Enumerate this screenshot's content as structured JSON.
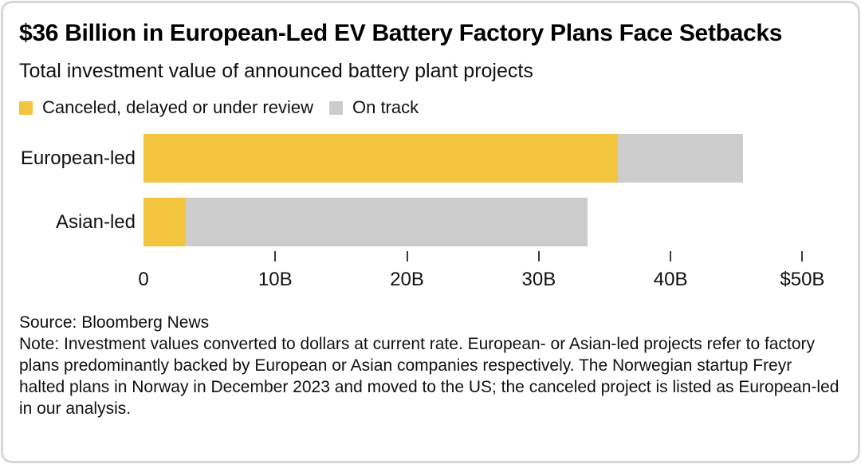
{
  "header": {
    "title": "$36 Billion in European-Led EV Battery Factory Plans Face Setbacks",
    "subtitle": "Total investment value of announced battery plant projects"
  },
  "colors": {
    "canceled": "#F3C53F",
    "on_track": "#CCCCCC"
  },
  "chart_data": {
    "type": "bar",
    "orientation": "horizontal",
    "stacked": true,
    "title": "$36 Billion in European-Led EV Battery Factory Plans Face Setbacks",
    "subtitle": "Total investment value of announced battery plant projects",
    "categories": [
      "European-led",
      "Asian-led"
    ],
    "series": [
      {
        "name": "Canceled, delayed or under review",
        "color": "#F3C53F",
        "values": [
          36,
          3.2
        ]
      },
      {
        "name": "On track",
        "color": "#CCCCCC",
        "values": [
          9.5,
          30.5
        ]
      }
    ],
    "xlim": [
      0,
      53
    ],
    "ticks": [
      {
        "value": 0,
        "label": "0"
      },
      {
        "value": 10,
        "label": "10B"
      },
      {
        "value": 20,
        "label": "20B"
      },
      {
        "value": 30,
        "label": "30B"
      },
      {
        "value": 40,
        "label": "40B"
      },
      {
        "value": 50,
        "label": "$50B"
      }
    ],
    "grid": false,
    "legend_position": "top"
  },
  "footer": {
    "source": "Source: Bloomberg News",
    "note": "Note: Investment values converted to dollars at current rate. European- or Asian-led projects refer to factory plans predominantly backed by European or Asian companies respectively. The Norwegian startup Freyr halted plans in Norway in December 2023 and moved to the US; the canceled project is listed as European-led in our analysis."
  }
}
